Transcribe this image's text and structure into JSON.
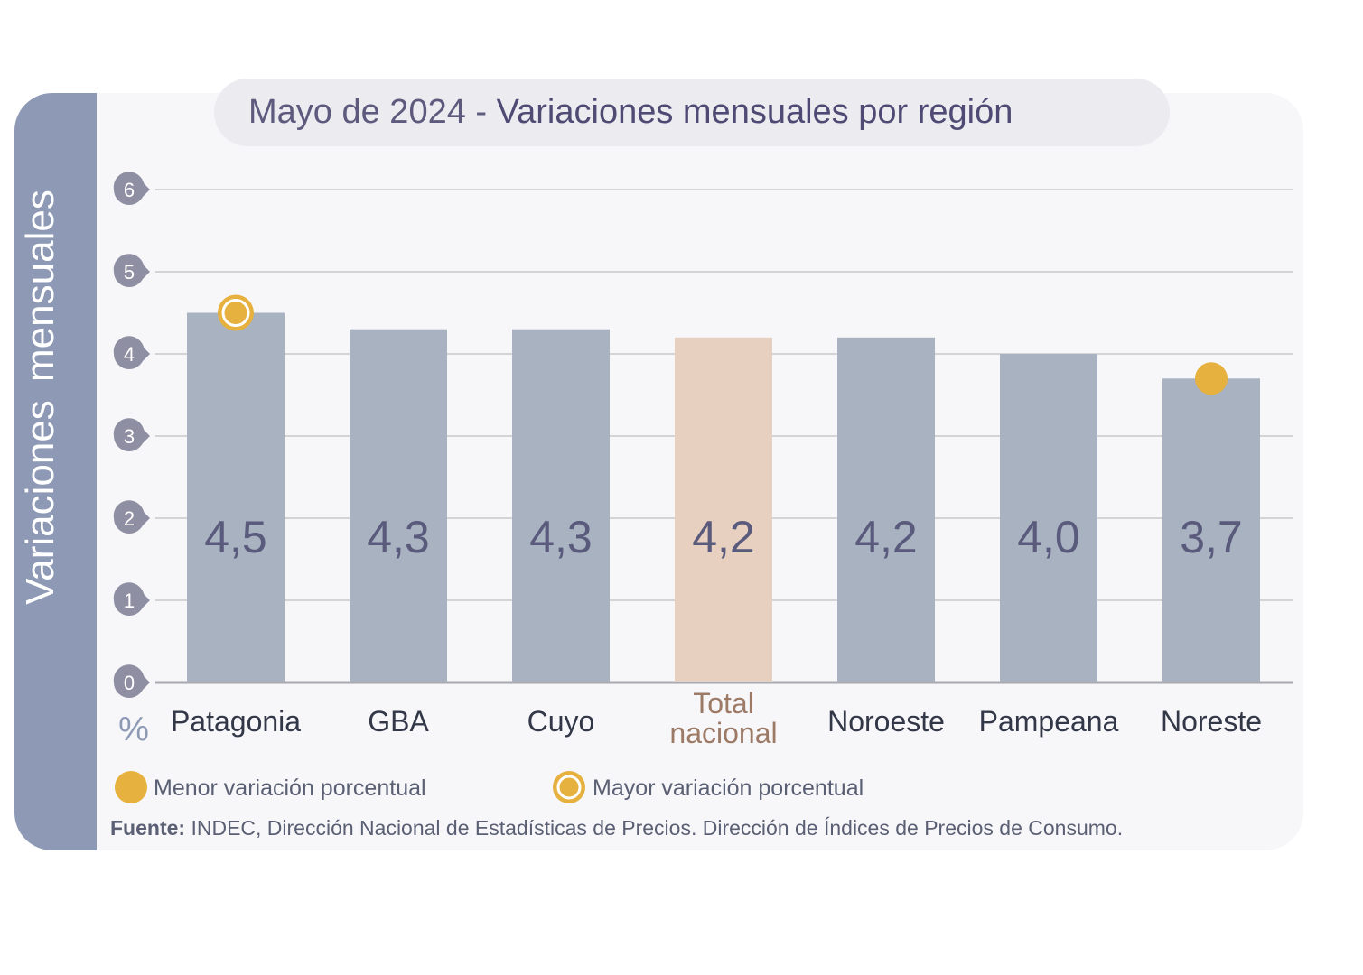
{
  "chart_data": {
    "type": "bar",
    "title_prefix": "Mayo de 2024 - ",
    "title_main": "Variaciones mensuales por región",
    "ylabel": "Variaciones  mensuales",
    "yunit": "%",
    "ylim": [
      0,
      6
    ],
    "yticks": [
      0,
      1,
      2,
      3,
      4,
      5,
      6
    ],
    "grid": true,
    "categories": [
      "Patagonia",
      "GBA",
      "Cuyo",
      "Total nacional",
      "Noroeste",
      "Pampeana",
      "Noreste"
    ],
    "category_lines": [
      [
        "Patagonia"
      ],
      [
        "GBA"
      ],
      [
        "Cuyo"
      ],
      [
        "Total",
        "nacional"
      ],
      [
        "Noroeste"
      ],
      [
        "Pampeana"
      ],
      [
        "Noreste"
      ]
    ],
    "values": [
      4.5,
      4.3,
      4.3,
      4.2,
      4.2,
      4.0,
      3.7
    ],
    "value_labels": [
      "4,5",
      "4,3",
      "4,3",
      "4,2",
      "4,2",
      "4,0",
      "3,7"
    ],
    "highlight": {
      "max_index": 0,
      "min_index": 6,
      "total_index": 3
    },
    "legend": [
      {
        "marker": "filled-circle",
        "label": "Menor variación porcentual"
      },
      {
        "marker": "ring-circle",
        "label": "Mayor variación porcentual"
      }
    ],
    "legend_placement": "bottom-left",
    "colors": {
      "bar": "#a8b2c0",
      "total_bar": "#e8d0c0",
      "marker": "#e6b13e",
      "tick_badge": "#8e8fa3",
      "grid": "#c8c8cc",
      "value_text": "#5a5a7c",
      "total_text": "#9c7a66"
    }
  },
  "source": {
    "label": "Fuente:",
    "text": " INDEC, Dirección Nacional de Estadísticas de Precios. Dirección de Índices de Precios de Consumo."
  }
}
